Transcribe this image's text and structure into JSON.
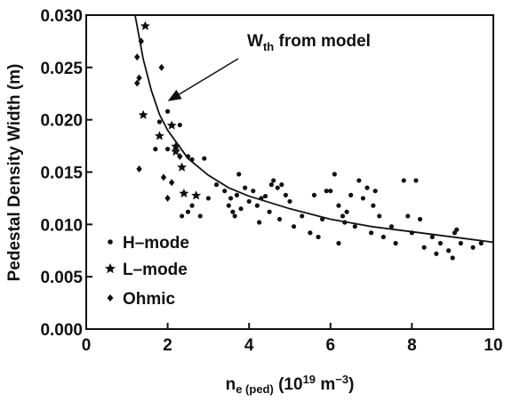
{
  "chart_data": {
    "type": "scatter",
    "y_label": "Pedestal Density Width (m)",
    "x_label": {
      "base": "n",
      "sub": "e (ped)",
      "open": " (10",
      "sup1": "19",
      "unit": " m",
      "sup2": "−3",
      "close": ")"
    },
    "annotation": {
      "base": "W",
      "sub": "th",
      "rest": " from model"
    },
    "xlim": [
      0,
      10
    ],
    "xticks": [
      0,
      2,
      4,
      6,
      8,
      10
    ],
    "ylim": [
      0,
      0.03
    ],
    "yticks": [
      {
        "value": 0,
        "label": "0.000"
      },
      {
        "value": 0.005,
        "label": "0.005"
      },
      {
        "value": 0.01,
        "label": "0.010"
      },
      {
        "value": 0.015,
        "label": "0.015"
      },
      {
        "value": 0.02,
        "label": "0.020"
      },
      {
        "value": 0.025,
        "label": "0.025"
      },
      {
        "value": 0.03,
        "label": "0.030"
      }
    ],
    "series": [
      {
        "name": "H–mode",
        "marker": "dot",
        "color": "#111111",
        "x": [
          2.5,
          2.6,
          2.9,
          2.6,
          2.35,
          2.0,
          1.7,
          1.8,
          2.0,
          2.3,
          2.5,
          3.0,
          3.4,
          3.5,
          3.6,
          3.65,
          3.7,
          3.75,
          3.8,
          3.9,
          4.0,
          4.1,
          4.2,
          4.3,
          4.4,
          4.5,
          4.55,
          4.6,
          4.7,
          4.75,
          4.8,
          4.9,
          5.0,
          5.1,
          5.3,
          5.5,
          5.6,
          5.7,
          5.8,
          5.9,
          6.0,
          6.1,
          6.2,
          6.3,
          6.35,
          6.4,
          6.5,
          6.6,
          6.7,
          6.8,
          6.9,
          7.0,
          7.05,
          7.1,
          7.2,
          7.3,
          7.5,
          7.6,
          7.8,
          7.9,
          8.0,
          8.1,
          8.2,
          8.3,
          8.5,
          8.6,
          8.7,
          8.9,
          9.0,
          9.05,
          9.1,
          9.2,
          9.5,
          9.7,
          3.2,
          3.55,
          4.25,
          6.2,
          2.8
        ],
        "values": [
          0.0112,
          0.0118,
          0.0163,
          0.0162,
          0.0108,
          0.0172,
          0.0172,
          0.0198,
          0.0208,
          0.0195,
          0.0165,
          0.0125,
          0.0132,
          0.0118,
          0.0112,
          0.0108,
          0.0128,
          0.0148,
          0.0115,
          0.0135,
          0.0122,
          0.0132,
          0.0118,
          0.0125,
          0.0127,
          0.0112,
          0.0138,
          0.0142,
          0.0135,
          0.0105,
          0.0138,
          0.0128,
          0.0122,
          0.0098,
          0.0108,
          0.0092,
          0.0128,
          0.0088,
          0.0105,
          0.0132,
          0.0132,
          0.0148,
          0.0118,
          0.0108,
          0.0102,
          0.0112,
          0.0128,
          0.0098,
          0.0142,
          0.0125,
          0.0135,
          0.0092,
          0.0118,
          0.0132,
          0.0108,
          0.0088,
          0.0098,
          0.0082,
          0.0142,
          0.0108,
          0.0092,
          0.0142,
          0.0105,
          0.0078,
          0.0088,
          0.0072,
          0.0082,
          0.0075,
          0.0068,
          0.0092,
          0.0095,
          0.0082,
          0.0078,
          0.0082,
          0.0138,
          0.0125,
          0.0102,
          0.0082,
          0.0108
        ]
      },
      {
        "name": "L–mode",
        "marker": "star",
        "color": "#111111",
        "x": [
          1.4,
          1.45,
          2.1,
          2.2,
          2.35,
          2.4,
          2.7,
          2.2,
          1.8
        ],
        "values": [
          0.0205,
          0.029,
          0.0195,
          0.017,
          0.0155,
          0.013,
          0.0128,
          0.0175,
          0.0185
        ]
      },
      {
        "name": "Ohmic",
        "marker": "diamond",
        "color": "#111111",
        "x": [
          1.25,
          1.25,
          1.3,
          1.35,
          1.85,
          1.3,
          1.9,
          2.0,
          2.1,
          2.3
        ],
        "values": [
          0.026,
          0.0235,
          0.024,
          0.0275,
          0.025,
          0.0153,
          0.0145,
          0.0125,
          0.014,
          0.0165
        ]
      },
      {
        "marker": "line",
        "color": "#111111",
        "x": [
          1.2,
          1.4,
          1.6,
          1.8,
          2.0,
          2.5,
          3.0,
          3.5,
          4.0,
          5.0,
          6.0,
          7.0,
          8.0,
          9.0,
          10.0
        ],
        "values": [
          0.03,
          0.0258,
          0.0228,
          0.0205,
          0.019,
          0.0163,
          0.0147,
          0.0135,
          0.0127,
          0.0115,
          0.0105,
          0.0098,
          0.0093,
          0.0088,
          0.0083
        ]
      }
    ]
  }
}
